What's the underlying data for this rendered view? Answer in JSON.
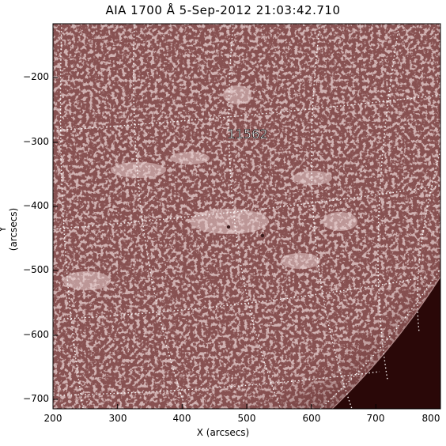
{
  "title": "AIA 1700 Å   5-Sep-2012 21:03:42.710",
  "xaxis": {
    "label": "X (arcsecs)",
    "range": [
      200,
      800
    ],
    "ticks": [
      200,
      300,
      400,
      500,
      600,
      700,
      800
    ],
    "tick_labels": [
      "200",
      "300",
      "400",
      "500",
      "600",
      "700",
      "800"
    ]
  },
  "yaxis": {
    "label": "Y (arcsecs)",
    "range": [
      -720,
      -130
    ],
    "ticks": [
      -200,
      -300,
      -400,
      -500,
      -600,
      -700
    ],
    "tick_labels": [
      "−200",
      "−300",
      "−400",
      "−500",
      "−600",
      "−700"
    ]
  },
  "annotation": {
    "text": "11562"
  },
  "image": {
    "description": "Solar chromosphere image with heliographic grid and limb",
    "colormap_color": "#8a4a4a",
    "limb_color": "#2a0808"
  }
}
